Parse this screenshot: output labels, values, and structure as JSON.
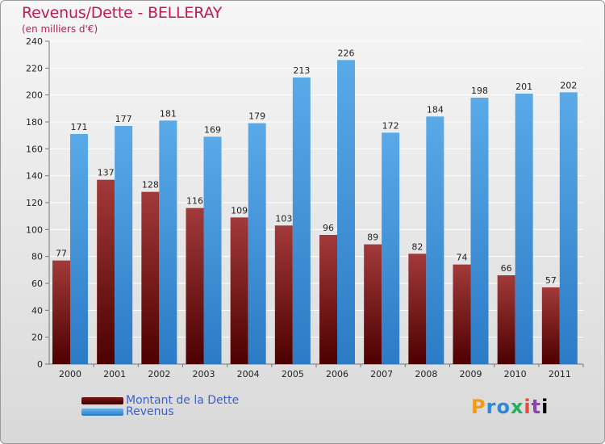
{
  "header": {
    "title": "Revenus/Dette - BELLERAY",
    "subtitle": "(en milliers d'€)"
  },
  "colors": {
    "debt_top": "#a23a3a",
    "debt_bottom": "#4d0000",
    "revenue_top": "#5aaae8",
    "revenue_bottom": "#2b7bc6",
    "grid": "#ffffff",
    "axis_text": "#222222"
  },
  "chart_data": {
    "type": "bar",
    "categories": [
      "2000",
      "2001",
      "2002",
      "2003",
      "2004",
      "2005",
      "2006",
      "2007",
      "2008",
      "2009",
      "2010",
      "2011"
    ],
    "series": [
      {
        "name": "Montant de la Dette",
        "values": [
          77,
          137,
          128,
          116,
          109,
          103,
          96,
          89,
          82,
          74,
          66,
          57
        ]
      },
      {
        "name": "Revenus",
        "values": [
          171,
          177,
          181,
          169,
          179,
          213,
          226,
          172,
          184,
          198,
          201,
          202
        ]
      }
    ],
    "yticks": [
      "0",
      "20",
      "40",
      "60",
      "80",
      "100",
      "120",
      "140",
      "160",
      "180",
      "200",
      "220",
      "240"
    ],
    "ylim": [
      0,
      240
    ],
    "grid": true,
    "legend_position": "bottom-left"
  },
  "legend": {
    "items": [
      {
        "label": "Montant de la Dette",
        "color": "#6b0a0a"
      },
      {
        "label": "Revenus",
        "color": "#4a9fe0"
      }
    ]
  },
  "logo": {
    "letters": [
      "P",
      "r",
      "o",
      "x",
      "i",
      "t",
      "i"
    ]
  }
}
